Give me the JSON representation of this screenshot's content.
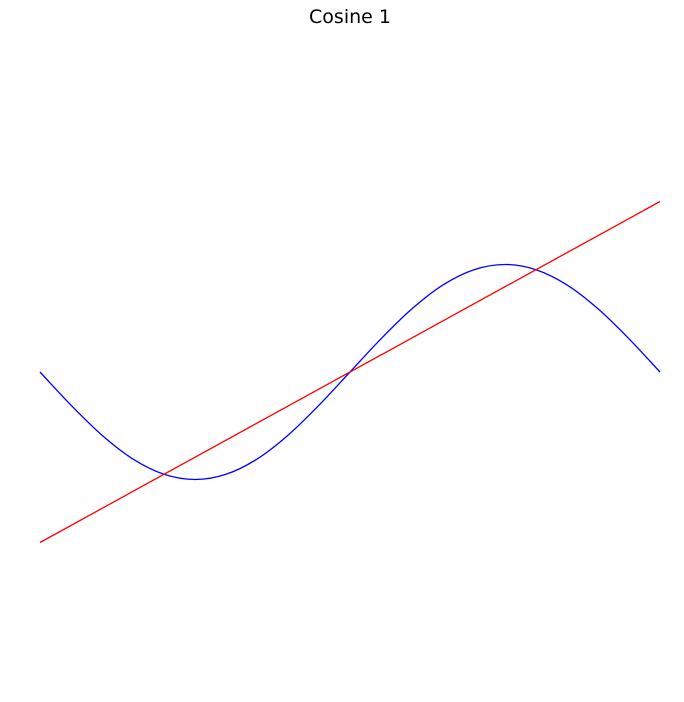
{
  "chart_data": {
    "type": "line",
    "title": "Cosine 1",
    "xlabel": "",
    "ylabel": "",
    "axes_visible": false,
    "grid": false,
    "legend": "none",
    "xlim": [
      -1,
      1
    ],
    "ylim": [
      -1.5,
      1.5
    ],
    "series": [
      {
        "color": "#0000ff",
        "x": [
          -1.0,
          -0.9,
          -0.8,
          -0.7,
          -0.6,
          -0.5,
          -0.4,
          -0.3,
          -0.2,
          -0.1,
          0.0,
          0.1,
          0.2,
          0.3,
          0.4,
          0.5,
          0.6,
          0.7,
          0.8,
          0.9,
          1.0
        ],
        "y": [
          0.0,
          -0.146,
          -0.278,
          -0.383,
          -0.45,
          -0.473,
          -0.45,
          -0.383,
          -0.278,
          -0.146,
          0.0,
          0.146,
          0.278,
          0.383,
          0.45,
          0.473,
          0.45,
          0.383,
          0.278,
          0.146,
          0.0
        ]
      },
      {
        "color": "#ff0000",
        "x": [
          -1.0,
          1.0
        ],
        "y": [
          -0.75,
          0.75
        ]
      }
    ]
  }
}
